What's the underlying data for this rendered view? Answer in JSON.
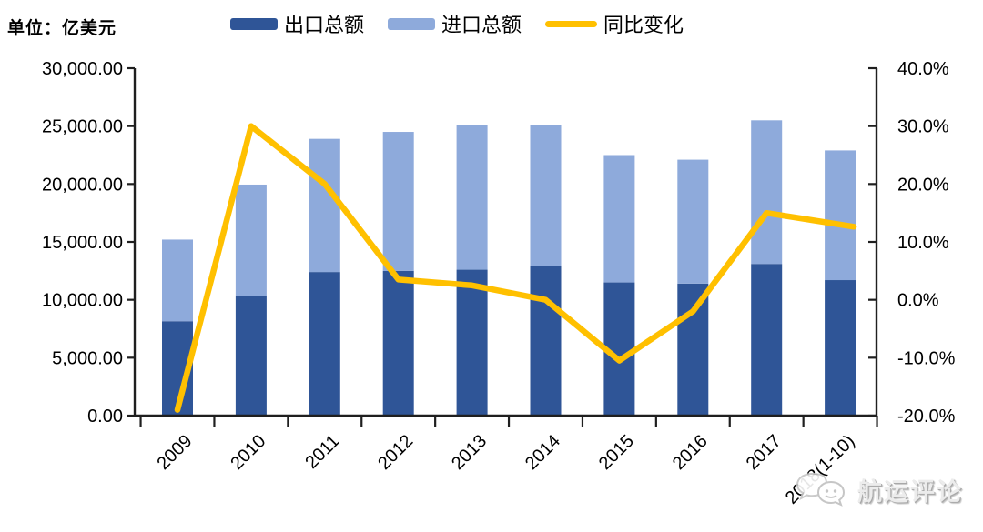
{
  "unit_label": "单位：亿美元",
  "watermark": {
    "text": "航运评论",
    "icon": "wechat-chat-bubbles-icon"
  },
  "colors": {
    "export_bar": "#2F5597",
    "import_bar": "#8EAADB",
    "yoy_line": "#FFC000",
    "axis": "#1f1f1f",
    "text": "#000000",
    "watermark_text": "#ececec"
  },
  "chart_data": {
    "type": "bar",
    "subtype": "stacked-column-with-line",
    "title": "",
    "unit": "亿美元",
    "grid": false,
    "legend_position": "top",
    "categories": [
      "2009",
      "2010",
      "2011",
      "2012",
      "2013",
      "2014",
      "2015",
      "2016",
      "2017",
      "2018(1-10)"
    ],
    "series": [
      {
        "name": "出口总额",
        "type": "bar",
        "stack": "trade",
        "axis": "left",
        "color": "#2F5597",
        "values": [
          8150,
          10300,
          12400,
          12500,
          12600,
          12900,
          11500,
          11400,
          13100,
          11700
        ]
      },
      {
        "name": "进口总额",
        "type": "bar",
        "stack": "trade",
        "axis": "left",
        "color": "#8EAADB",
        "values": [
          7050,
          9650,
          11500,
          12000,
          12500,
          12200,
          11000,
          10700,
          12400,
          11200
        ]
      },
      {
        "name": "同比变化",
        "type": "line",
        "axis": "right",
        "color": "#FFC000",
        "values": [
          -19,
          30,
          20,
          3.5,
          2.5,
          0,
          -10.5,
          -2,
          15,
          13
        ]
      }
    ],
    "stacked_totals": [
      15200,
      19950,
      23900,
      24500,
      25100,
      25100,
      22500,
      22100,
      25500,
      22900
    ],
    "left_axis": {
      "min": 0,
      "max": 30000,
      "step": 5000,
      "tick_labels": [
        "0.00",
        "5,000.00",
        "10,000.00",
        "15,000.00",
        "20,000.00",
        "25,000.00",
        "30,000.00"
      ]
    },
    "right_axis": {
      "min": -20,
      "max": 40,
      "step": 10,
      "tick_labels": [
        "-20.0%",
        "-10.0%",
        "0.0%",
        "10.0%",
        "20.0%",
        "30.0%",
        "40.0%"
      ]
    }
  }
}
